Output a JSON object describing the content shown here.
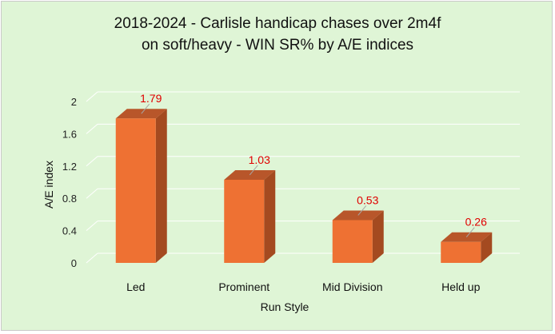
{
  "chart_data": {
    "type": "bar",
    "style": "3d-column",
    "title_lines": [
      "2018-2024 - Carlisle handicap chases over 2m4f",
      "on soft/heavy - WIN SR% by A/E indices"
    ],
    "categories": [
      "Led",
      "Prominent",
      "Mid Division",
      "Held up"
    ],
    "values": [
      1.79,
      1.03,
      0.53,
      0.26
    ],
    "data_labels": [
      "1.79",
      "1.03",
      "0.53",
      "0.26"
    ],
    "xlabel": "Run Style",
    "ylabel": "A/E index",
    "ylim": [
      0,
      2
    ],
    "yticks": [
      0,
      0.4,
      0.8,
      1.2,
      1.6,
      2
    ],
    "ytick_labels": [
      "0",
      "0.4",
      "0.8",
      "1.2",
      "1.6",
      "2"
    ],
    "grid": true,
    "legend": "none",
    "colors": {
      "bar_front": "#ee7133",
      "bar_top": "#b8562a",
      "bar_side": "#a44a20",
      "data_label": "#e00000",
      "background": "#dff5d6"
    }
  }
}
